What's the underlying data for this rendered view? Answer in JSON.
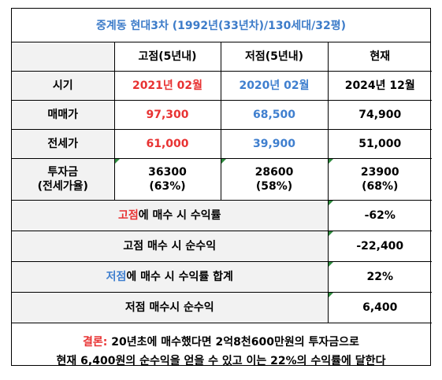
{
  "title": "중계동 현대3차 (1992년(33년차)/130세대/32평)",
  "header": {
    "col_high": "고점(5년내)",
    "col_low": "저점(5년내)",
    "col_now": "현재"
  },
  "rows": {
    "period": {
      "label": "시기",
      "high": "2021년 02월",
      "low": "2020년 02월",
      "now": "2024년 12월"
    },
    "sale": {
      "label": "매매가",
      "high": "97,300",
      "low": "68,500",
      "now": "74,900"
    },
    "jeonse": {
      "label": "전세가",
      "high": "61,000",
      "low": "39,900",
      "now": "51,000"
    },
    "investment": {
      "label_line1": "투자금",
      "label_line2": "(전세가율)",
      "high_line1": "36300",
      "high_line2": "(63%)",
      "low_line1": "28600",
      "low_line2": "(58%)",
      "now_line1": "23900",
      "now_line2": "(68%)"
    }
  },
  "summary": {
    "high_rate": {
      "accent": "고점",
      "rest": "에 매수 시 수익률",
      "value": "-62%"
    },
    "high_profit": {
      "label": "고점 매수 시 순수익",
      "value": "-22,400"
    },
    "low_rate": {
      "accent": "저점",
      "rest": "에 매수 시 수익률 합계",
      "value": "22%"
    },
    "low_profit": {
      "label": "저점 매수시 순수익",
      "value": "6,400"
    }
  },
  "conclusion": {
    "accent": "결론:",
    "line1_rest": " 20년초에 매수했다면 2억8천600만원의 투자금으로",
    "line2": "현재 6,400원의 순수익을 얻을 수 있고 이는 22%의 수익률에 달한다"
  },
  "colors": {
    "red": "#e83232",
    "blue": "#3f7fcf",
    "title_blue": "#3d7cc9",
    "cell_grey": "#f2f2f2",
    "marker_green": "#2e8b3e"
  }
}
